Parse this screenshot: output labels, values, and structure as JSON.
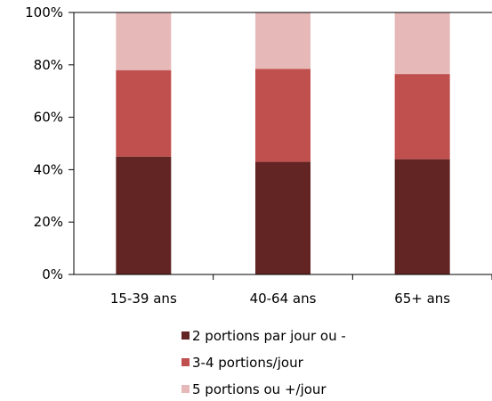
{
  "chart_data": {
    "type": "bar",
    "stacked": true,
    "categories": [
      "15-39 ans",
      "40-64 ans",
      "65+ ans"
    ],
    "series": [
      {
        "name": "2 portions par jour ou -",
        "values": [
          45,
          43,
          44
        ],
        "color": "#632523"
      },
      {
        "name": "3-4 portions/jour",
        "values": [
          33,
          35.5,
          32.5
        ],
        "color": "#c0504d"
      },
      {
        "name": "5 portions ou +/jour",
        "values": [
          22,
          21.5,
          23.5
        ],
        "color": "#e6b9b8"
      }
    ],
    "yticks": [
      "0%",
      "20%",
      "40%",
      "60%",
      "80%",
      "100%"
    ],
    "ylim": [
      0,
      100
    ],
    "grid": false,
    "legend_position": "bottom"
  }
}
